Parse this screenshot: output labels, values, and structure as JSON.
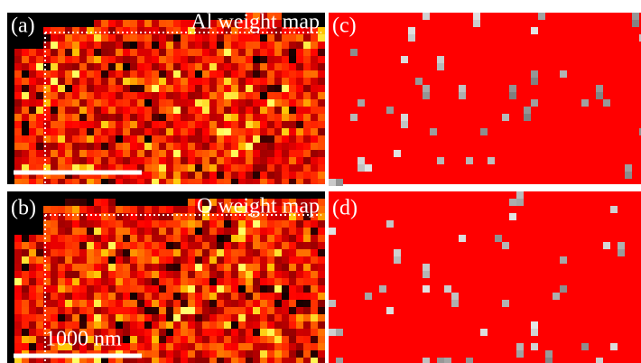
{
  "panels": [
    {
      "label": "(a)",
      "title": "Al weight map"
    },
    {
      "label": "(b)",
      "title": "O weight map"
    },
    {
      "label": "(c)"
    },
    {
      "label": "(d)"
    }
  ],
  "scale_bar": {
    "label": "1000 nm"
  }
}
